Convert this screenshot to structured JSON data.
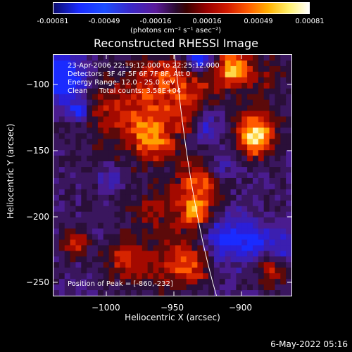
{
  "colorbar": {
    "tick_labels": [
      "-0.00081",
      "-0.00049",
      "-0.00016",
      "0.00016",
      "0.00049",
      "0.00081"
    ],
    "units": "(photons cm⁻² s⁻¹ asec⁻²)"
  },
  "plot": {
    "title": "Reconstructed RHESSI Image",
    "xlabel": "Heliocentric X (arcsec)",
    "ylabel": "Heliocentric Y (arcsec)",
    "x_ticks": [
      "−1000",
      "−950",
      "−900"
    ],
    "y_ticks": [
      "−100",
      "−150",
      "−200",
      "−250"
    ],
    "info": {
      "time_range": "23-Apr-2006 22:19:12.000 to 22:25:12.000",
      "detectors": "Detectors: 3F 4F 5F 6F 7F 8F, Att 0",
      "energy": "Energy Range: 12.0 - 25.0 keV",
      "clean": "Clean",
      "total_counts": "Total counts: 3.58E+04",
      "peak": "Position of Peak = [-860,-232]"
    }
  },
  "footer": {
    "date": "6-May-2022 05:16"
  }
}
